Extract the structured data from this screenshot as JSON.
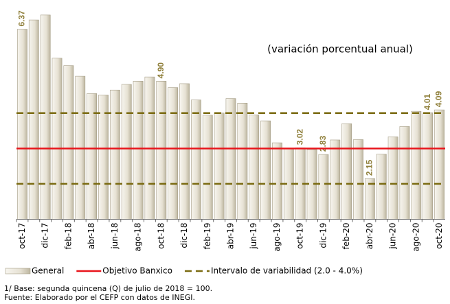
{
  "chart_data": {
    "type": "bar",
    "subtitle": "(variación porcentual anual)",
    "categories": [
      "oct-17",
      null,
      "dic-17",
      null,
      "feb-18",
      null,
      "abr-18",
      null,
      "jun-18",
      null,
      "ago-18",
      null,
      "oct-18",
      null,
      "dic-18",
      null,
      "feb-19",
      null,
      "abr-19",
      null,
      "jun-19",
      null,
      "ago-19",
      null,
      "oct-19",
      null,
      "dic-19",
      null,
      "feb-20",
      null,
      "abr-20",
      null,
      "jun-20",
      null,
      "ago-20",
      null,
      "oct-20"
    ],
    "series": [
      {
        "name": "General",
        "color": "#e6e1d3",
        "values": [
          6.37,
          6.63,
          6.77,
          5.55,
          5.34,
          5.04,
          4.55,
          4.51,
          4.65,
          4.81,
          4.9,
          5.02,
          4.9,
          4.72,
          4.83,
          4.37,
          3.94,
          4.0,
          4.41,
          4.28,
          3.95,
          3.78,
          3.16,
          3.0,
          3.02,
          2.97,
          2.83,
          3.24,
          3.7,
          3.25,
          2.15,
          2.84,
          3.33,
          3.62,
          4.05,
          4.01,
          4.09
        ],
        "value_labels": [
          "6.37",
          null,
          null,
          null,
          null,
          null,
          null,
          null,
          null,
          null,
          null,
          null,
          "4.90",
          null,
          null,
          null,
          null,
          null,
          null,
          null,
          null,
          null,
          null,
          null,
          "3.02",
          null,
          "2.83",
          null,
          null,
          null,
          "2.15",
          null,
          null,
          null,
          null,
          "4.01",
          "4.09"
        ]
      }
    ],
    "reference_lines": [
      {
        "name": "Objetivo Banxico",
        "color": "#e8141b",
        "dashed": false,
        "values": [
          3.0
        ]
      },
      {
        "name": "Intervalo de variabilidad (2.0 - 4.0%)",
        "color": "#7a6a10",
        "dashed": true,
        "values": [
          2.0,
          4.0
        ]
      }
    ],
    "ylim": [
      1.0,
      7.0
    ],
    "notes": [
      "1/ Base: segunda quincena (Q) de julio de 2018 = 100.",
      "Fuente: Elaborado por el CEFP con datos de INEGI."
    ]
  }
}
